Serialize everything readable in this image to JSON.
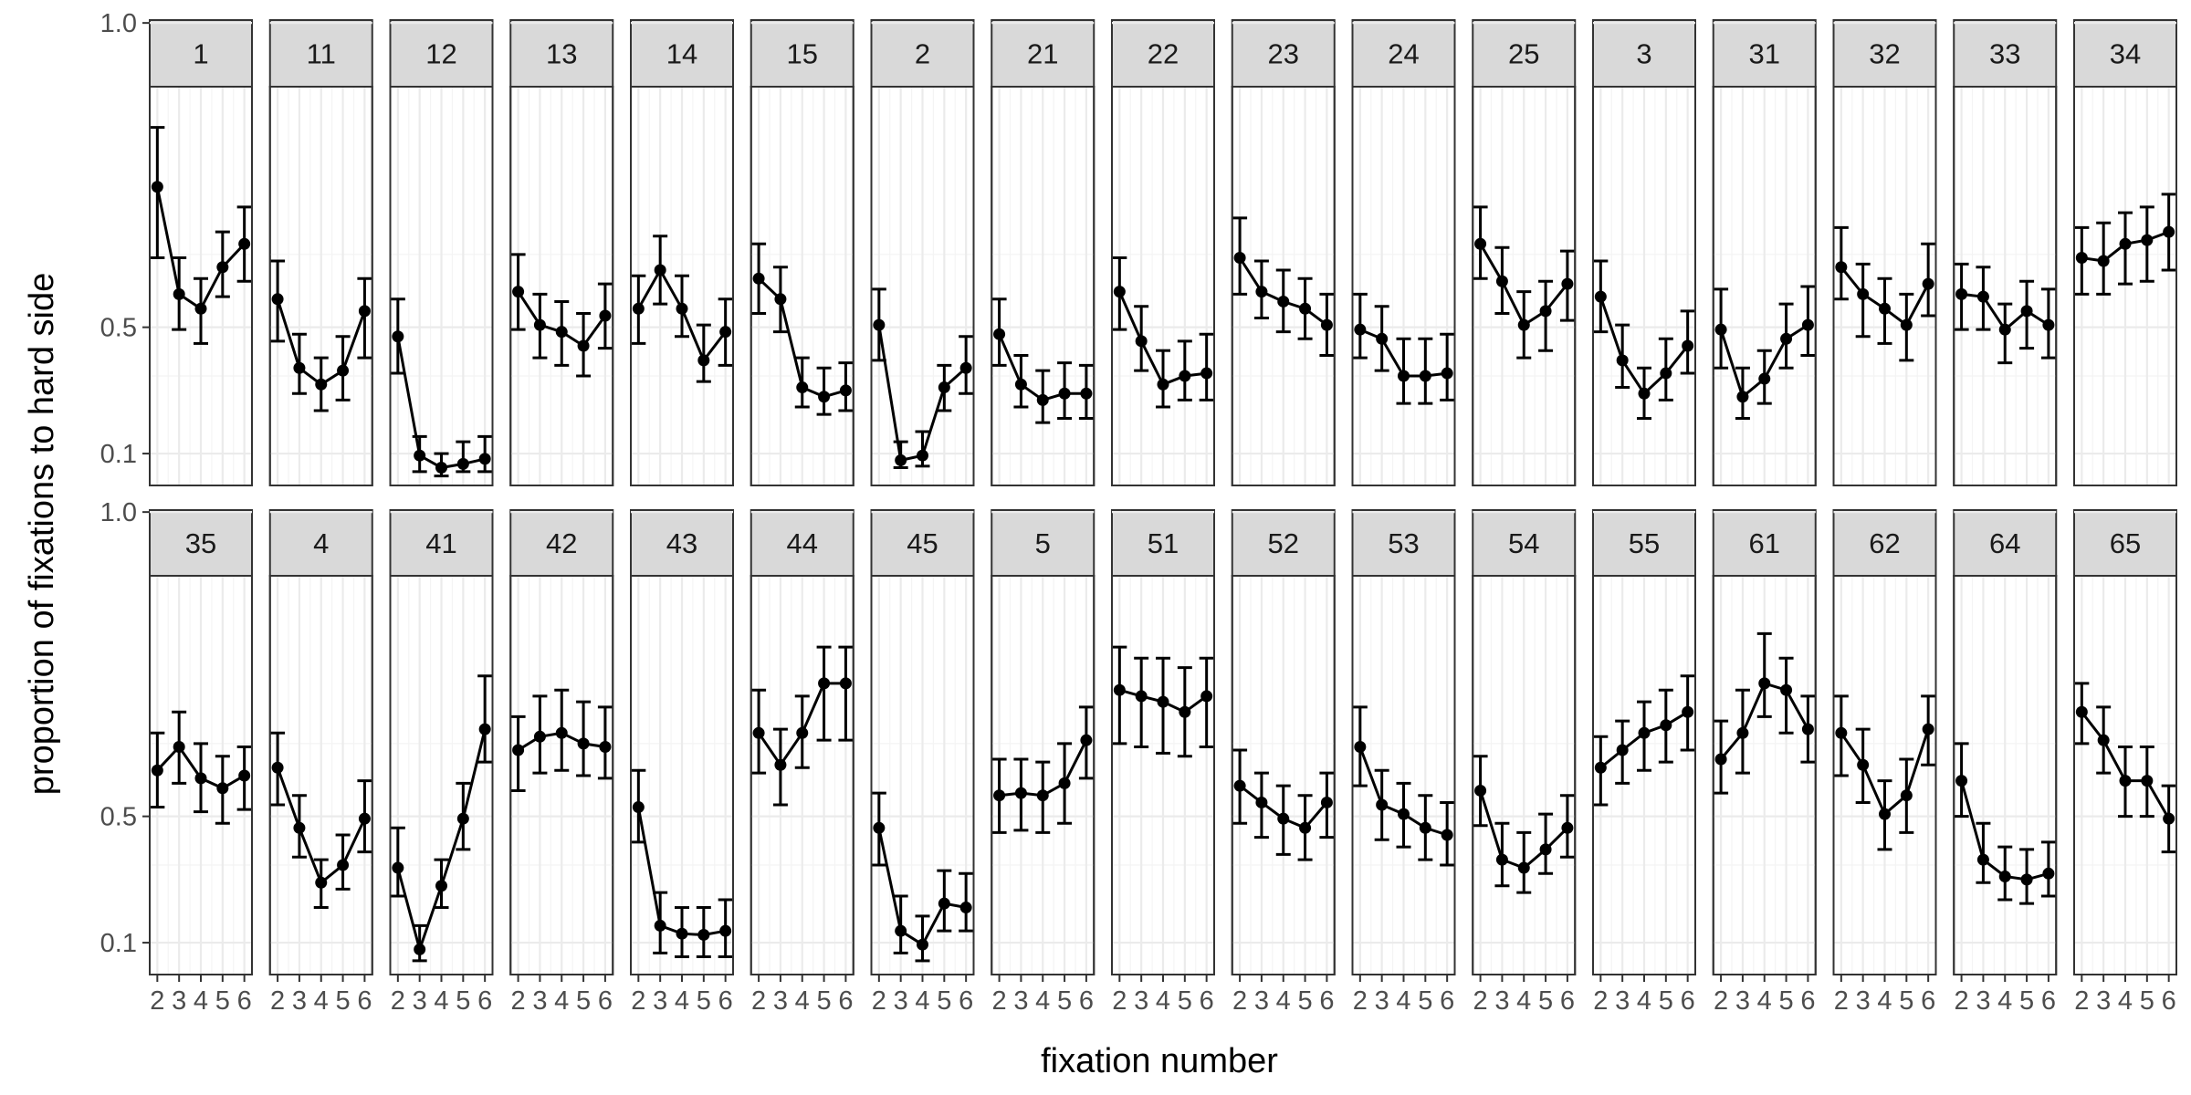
{
  "chart_data": {
    "type": "line",
    "facet_layout": "2 rows x 17 columns",
    "xlabel": "fixation number",
    "ylabel": "proportion of fixations to hard side",
    "x": [
      2,
      3,
      4,
      5,
      6
    ],
    "x_tick_labels": [
      "2",
      "3",
      "4",
      "5",
      "6"
    ],
    "y_scale": "logit",
    "y_ticks": [
      0.1,
      0.5,
      1.0
    ],
    "y_tick_labels": [
      "0.1",
      "0.5",
      "1.0"
    ],
    "grid": true,
    "error_bars": true,
    "panels": [
      {
        "label": "1",
        "values": [
          0.92,
          0.64,
          0.58,
          0.74,
          0.81
        ],
        "lower": [
          0.77,
          0.49,
          0.43,
          0.63,
          0.69
        ],
        "upper": [
          0.97,
          0.77,
          0.7,
          0.84,
          0.89
        ]
      },
      {
        "label": "11",
        "values": [
          0.62,
          0.33,
          0.27,
          0.32,
          0.57
        ],
        "lower": [
          0.44,
          0.24,
          0.19,
          0.22,
          0.37
        ],
        "upper": [
          0.76,
          0.47,
          0.37,
          0.46,
          0.7
        ]
      },
      {
        "label": "12",
        "values": [
          0.46,
          0.097,
          0.08,
          0.085,
          0.092
        ],
        "lower": [
          0.31,
          0.075,
          0.07,
          0.075,
          0.075
        ],
        "upper": [
          0.62,
          0.13,
          0.1,
          0.12,
          0.13
        ]
      },
      {
        "label": "13",
        "values": [
          0.65,
          0.51,
          0.48,
          0.42,
          0.55
        ],
        "lower": [
          0.49,
          0.37,
          0.34,
          0.3,
          0.41
        ],
        "upper": [
          0.78,
          0.64,
          0.61,
          0.56,
          0.68
        ]
      },
      {
        "label": "14",
        "values": [
          0.58,
          0.73,
          0.58,
          0.36,
          0.48
        ],
        "lower": [
          0.43,
          0.6,
          0.46,
          0.28,
          0.34
        ],
        "upper": [
          0.71,
          0.83,
          0.71,
          0.51,
          0.62
        ]
      },
      {
        "label": "15",
        "values": [
          0.7,
          0.62,
          0.26,
          0.23,
          0.25
        ],
        "lower": [
          0.56,
          0.48,
          0.2,
          0.18,
          0.19
        ],
        "upper": [
          0.81,
          0.74,
          0.37,
          0.33,
          0.35
        ]
      },
      {
        "label": "2",
        "values": [
          0.51,
          0.09,
          0.097,
          0.26,
          0.33
        ],
        "lower": [
          0.36,
          0.08,
          0.082,
          0.19,
          0.24
        ],
        "upper": [
          0.66,
          0.12,
          0.14,
          0.34,
          0.46
        ]
      },
      {
        "label": "21",
        "values": [
          0.47,
          0.27,
          0.22,
          0.24,
          0.24
        ],
        "lower": [
          0.34,
          0.2,
          0.16,
          0.17,
          0.17
        ],
        "upper": [
          0.62,
          0.38,
          0.32,
          0.35,
          0.34
        ]
      },
      {
        "label": "22",
        "values": [
          0.65,
          0.44,
          0.27,
          0.3,
          0.31
        ],
        "lower": [
          0.49,
          0.32,
          0.2,
          0.22,
          0.22
        ],
        "upper": [
          0.77,
          0.59,
          0.4,
          0.44,
          0.47
        ]
      },
      {
        "label": "23",
        "values": [
          0.77,
          0.65,
          0.61,
          0.58,
          0.51
        ],
        "lower": [
          0.64,
          0.54,
          0.48,
          0.45,
          0.38
        ],
        "upper": [
          0.87,
          0.76,
          0.73,
          0.7,
          0.64
        ]
      },
      {
        "label": "24",
        "values": [
          0.49,
          0.45,
          0.3,
          0.3,
          0.31
        ],
        "lower": [
          0.37,
          0.32,
          0.21,
          0.21,
          0.22
        ],
        "upper": [
          0.64,
          0.59,
          0.45,
          0.45,
          0.47
        ]
      },
      {
        "label": "25",
        "values": [
          0.81,
          0.69,
          0.51,
          0.57,
          0.68
        ],
        "lower": [
          0.7,
          0.56,
          0.37,
          0.4,
          0.53
        ],
        "upper": [
          0.89,
          0.8,
          0.65,
          0.69,
          0.79
        ]
      },
      {
        "label": "3",
        "values": [
          0.63,
          0.36,
          0.24,
          0.31,
          0.42
        ],
        "lower": [
          0.48,
          0.26,
          0.17,
          0.22,
          0.31
        ],
        "upper": [
          0.76,
          0.51,
          0.33,
          0.45,
          0.57
        ]
      },
      {
        "label": "31",
        "values": [
          0.49,
          0.23,
          0.29,
          0.45,
          0.51
        ],
        "lower": [
          0.33,
          0.17,
          0.21,
          0.33,
          0.38
        ],
        "upper": [
          0.66,
          0.33,
          0.4,
          0.6,
          0.67
        ]
      },
      {
        "label": "32",
        "values": [
          0.74,
          0.64,
          0.58,
          0.51,
          0.68
        ],
        "lower": [
          0.62,
          0.46,
          0.43,
          0.36,
          0.55
        ],
        "upper": [
          0.85,
          0.75,
          0.7,
          0.64,
          0.81
        ]
      },
      {
        "label": "33",
        "values": [
          0.64,
          0.63,
          0.49,
          0.57,
          0.51
        ],
        "lower": [
          0.49,
          0.49,
          0.35,
          0.41,
          0.37
        ],
        "upper": [
          0.75,
          0.74,
          0.6,
          0.69,
          0.66
        ]
      },
      {
        "label": "34",
        "values": [
          0.77,
          0.76,
          0.81,
          0.82,
          0.84
        ],
        "lower": [
          0.64,
          0.64,
          0.68,
          0.69,
          0.73
        ],
        "upper": [
          0.85,
          0.86,
          0.88,
          0.89,
          0.91
        ]
      },
      {
        "label": "35",
        "values": [
          0.69,
          0.77,
          0.66,
          0.62,
          0.67
        ],
        "lower": [
          0.54,
          0.64,
          0.52,
          0.47,
          0.53
        ],
        "upper": [
          0.81,
          0.86,
          0.78,
          0.74,
          0.77
        ]
      },
      {
        "label": "4",
        "values": [
          0.7,
          0.45,
          0.24,
          0.3,
          0.49
        ],
        "lower": [
          0.55,
          0.33,
          0.17,
          0.22,
          0.35
        ],
        "upper": [
          0.81,
          0.59,
          0.32,
          0.42,
          0.65
        ]
      },
      {
        "label": "41",
        "values": [
          0.29,
          0.09,
          0.23,
          0.49,
          0.82
        ],
        "lower": [
          0.2,
          0.075,
          0.17,
          0.36,
          0.72
        ],
        "upper": [
          0.45,
          0.13,
          0.32,
          0.64,
          0.92
        ]
      },
      {
        "label": "42",
        "values": [
          0.76,
          0.8,
          0.81,
          0.78,
          0.77
        ],
        "lower": [
          0.61,
          0.68,
          0.69,
          0.67,
          0.66
        ],
        "upper": [
          0.85,
          0.89,
          0.9,
          0.88,
          0.87
        ]
      },
      {
        "label": "43",
        "values": [
          0.54,
          0.13,
          0.115,
          0.113,
          0.12
        ],
        "lower": [
          0.39,
          0.085,
          0.08,
          0.08,
          0.08
        ],
        "upper": [
          0.69,
          0.21,
          0.17,
          0.17,
          0.19
        ]
      },
      {
        "label": "44",
        "values": [
          0.81,
          0.71,
          0.81,
          0.91,
          0.91
        ],
        "lower": [
          0.68,
          0.55,
          0.7,
          0.79,
          0.79
        ],
        "upper": [
          0.9,
          0.82,
          0.89,
          0.95,
          0.95
        ]
      },
      {
        "label": "45",
        "values": [
          0.45,
          0.12,
          0.097,
          0.18,
          0.17
        ],
        "lower": [
          0.3,
          0.085,
          0.075,
          0.12,
          0.12
        ],
        "upper": [
          0.6,
          0.2,
          0.15,
          0.28,
          0.27
        ]
      },
      {
        "label": "5",
        "values": [
          0.59,
          0.6,
          0.59,
          0.64,
          0.79
        ],
        "lower": [
          0.43,
          0.44,
          0.43,
          0.47,
          0.66
        ],
        "upper": [
          0.73,
          0.73,
          0.72,
          0.78,
          0.87
        ]
      },
      {
        "label": "51",
        "values": [
          0.9,
          0.89,
          0.88,
          0.86,
          0.89
        ],
        "lower": [
          0.78,
          0.77,
          0.75,
          0.74,
          0.77
        ],
        "upper": [
          0.95,
          0.94,
          0.94,
          0.93,
          0.94
        ]
      },
      {
        "label": "52",
        "values": [
          0.63,
          0.56,
          0.49,
          0.45,
          0.56
        ],
        "lower": [
          0.47,
          0.41,
          0.34,
          0.32,
          0.41
        ],
        "upper": [
          0.76,
          0.68,
          0.63,
          0.59,
          0.68
        ]
      },
      {
        "label": "53",
        "values": [
          0.77,
          0.55,
          0.51,
          0.45,
          0.42
        ],
        "lower": [
          0.63,
          0.4,
          0.37,
          0.32,
          0.3
        ],
        "upper": [
          0.87,
          0.69,
          0.64,
          0.59,
          0.56
        ]
      },
      {
        "label": "54",
        "values": [
          0.61,
          0.32,
          0.29,
          0.36,
          0.45
        ],
        "lower": [
          0.46,
          0.23,
          0.21,
          0.27,
          0.33
        ],
        "upper": [
          0.74,
          0.47,
          0.43,
          0.51,
          0.59
        ]
      },
      {
        "label": "55",
        "values": [
          0.7,
          0.76,
          0.81,
          0.83,
          0.86
        ],
        "lower": [
          0.55,
          0.64,
          0.69,
          0.72,
          0.76
        ],
        "upper": [
          0.8,
          0.84,
          0.88,
          0.9,
          0.92
        ]
      },
      {
        "label": "61",
        "values": [
          0.73,
          0.81,
          0.91,
          0.9,
          0.82
        ],
        "lower": [
          0.6,
          0.68,
          0.85,
          0.81,
          0.72
        ],
        "upper": [
          0.84,
          0.9,
          0.96,
          0.94,
          0.89
        ]
      },
      {
        "label": "62",
        "values": [
          0.81,
          0.71,
          0.51,
          0.59,
          0.82
        ],
        "lower": [
          0.67,
          0.56,
          0.36,
          0.43,
          0.71
        ],
        "upper": [
          0.89,
          0.82,
          0.65,
          0.73,
          0.89
        ]
      },
      {
        "label": "64",
        "values": [
          0.65,
          0.32,
          0.26,
          0.25,
          0.27
        ],
        "lower": [
          0.5,
          0.24,
          0.19,
          0.18,
          0.2
        ],
        "upper": [
          0.78,
          0.47,
          0.37,
          0.36,
          0.39
        ]
      },
      {
        "label": "65",
        "values": [
          0.86,
          0.79,
          0.65,
          0.65,
          0.49
        ],
        "lower": [
          0.78,
          0.68,
          0.5,
          0.5,
          0.35
        ],
        "upper": [
          0.91,
          0.87,
          0.77,
          0.77,
          0.63
        ]
      }
    ]
  },
  "colors": {
    "strip_fill": "#d9d9d9",
    "panel_border": "#333333",
    "grid": "#ebebeb",
    "series": "#000000",
    "tick_label": "#4d4d4d"
  }
}
